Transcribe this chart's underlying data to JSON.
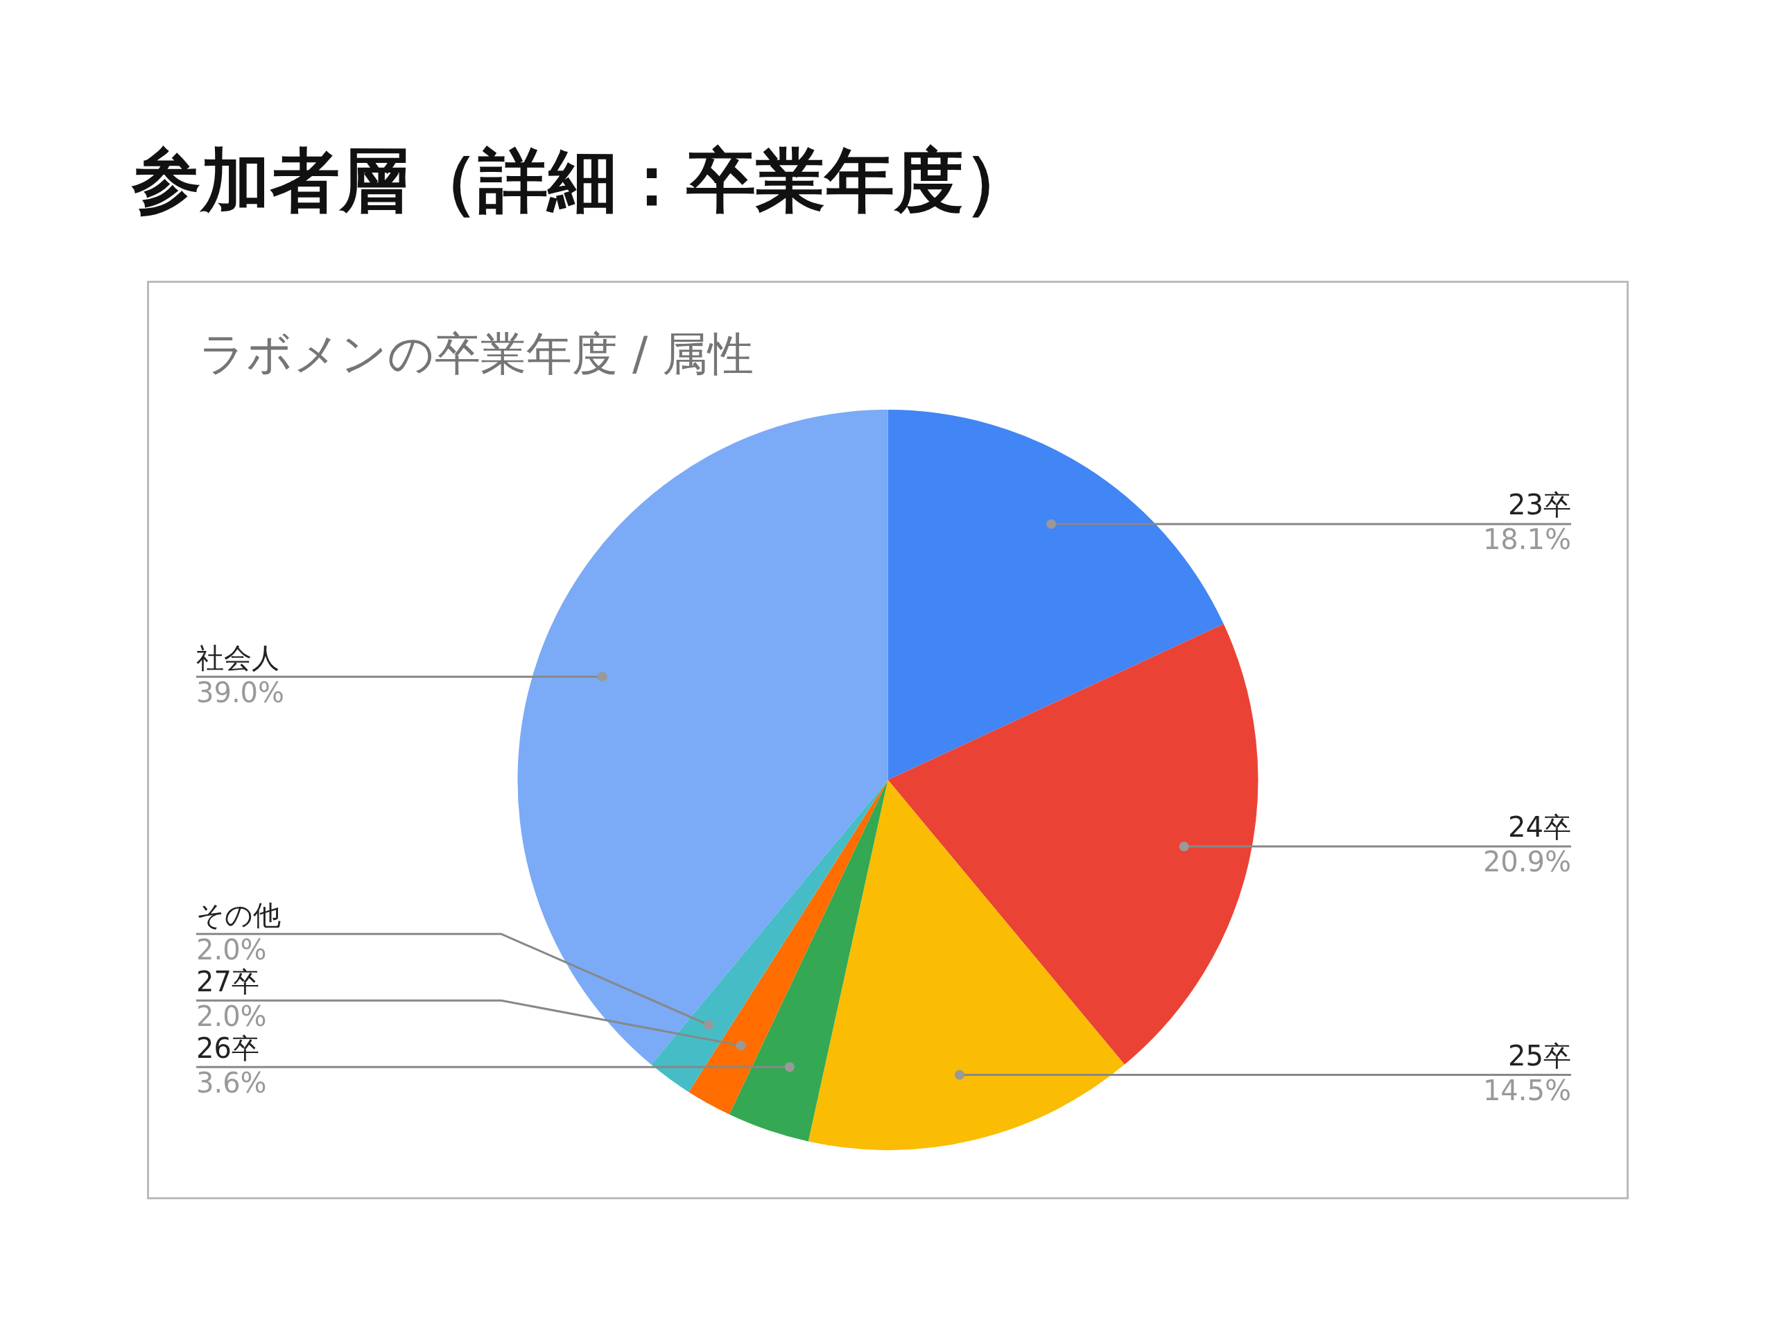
{
  "chart_data": {
    "type": "pie",
    "title": "参加者層（詳細：卒業年度）",
    "subtitle": "ラボメンの卒業年度 / 属性",
    "categories": [
      "23卒",
      "24卒",
      "25卒",
      "26卒",
      "27卒",
      "その他",
      "社会人"
    ],
    "values": [
      18.1,
      20.9,
      14.5,
      3.6,
      2.0,
      2.0,
      39.0
    ],
    "value_labels": [
      "18.1%",
      "20.9%",
      "14.5%",
      "3.6%",
      "2.0%",
      "2.0%",
      "39.0%"
    ],
    "colors": [
      "#4285f4",
      "#ea4335",
      "#fbbc04",
      "#34a853",
      "#ff6d01",
      "#46bdc6",
      "#7baaf7"
    ],
    "legend": false
  }
}
